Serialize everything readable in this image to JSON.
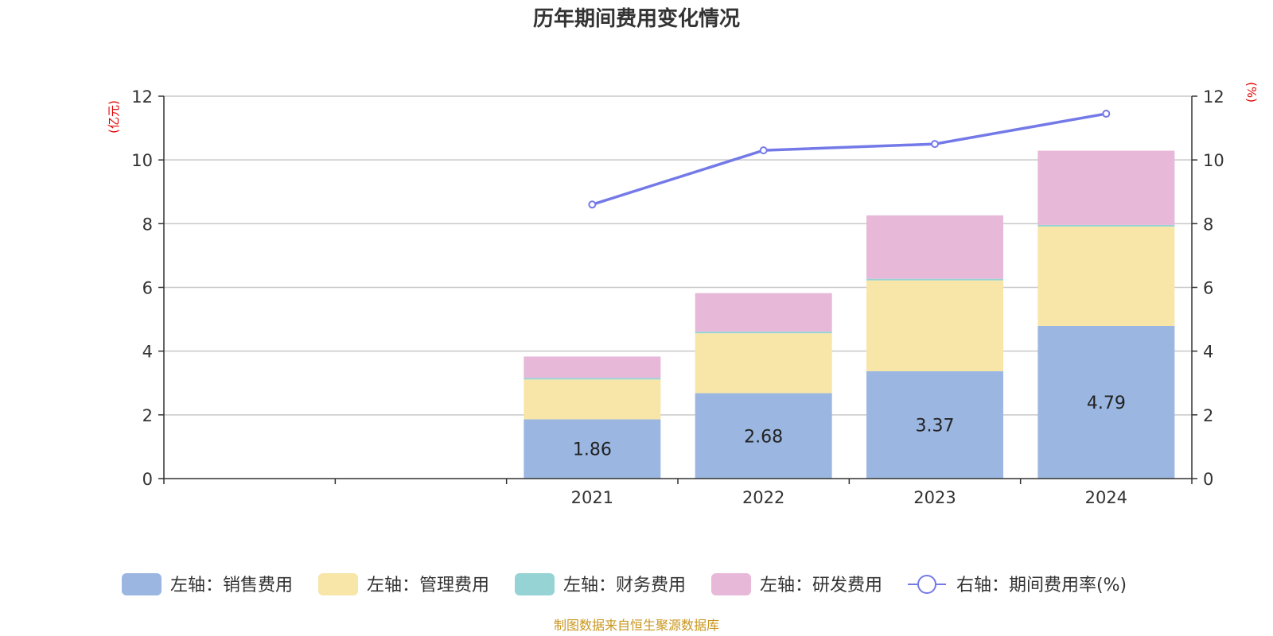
{
  "chart_data": {
    "type": "bar",
    "title": "历年期间费用变化情况",
    "categories": [
      "",
      "",
      "2021",
      "2022",
      "2023",
      "2024"
    ],
    "left_axis": {
      "unit": "(亿元)",
      "min": 0,
      "max": 12,
      "ticks": [
        "0",
        "2",
        "4",
        "6",
        "8",
        "10",
        "12"
      ]
    },
    "right_axis": {
      "unit": "(%)",
      "min": 0,
      "max": 12,
      "ticks": [
        "0",
        "2",
        "4",
        "6",
        "8",
        "10",
        "12"
      ]
    },
    "stacked": true,
    "series": [
      {
        "name": "左轴：销售费用",
        "axis": "left",
        "color": "#9bb7e1",
        "values": [
          null,
          null,
          1.86,
          2.68,
          3.37,
          4.79
        ],
        "labels": [
          "",
          "",
          "1.86",
          "2.68",
          "3.37",
          "4.79"
        ]
      },
      {
        "name": "左轴：管理费用",
        "axis": "left",
        "color": "#f7e6a8",
        "values": [
          null,
          null,
          1.25,
          1.88,
          2.85,
          3.12
        ]
      },
      {
        "name": "左轴：财务费用",
        "axis": "left",
        "color": "#96d3d4",
        "values": [
          null,
          null,
          0.05,
          0.05,
          0.05,
          0.05
        ]
      },
      {
        "name": "左轴：研发费用",
        "axis": "left",
        "color": "#e7b8d8",
        "values": [
          null,
          null,
          0.67,
          1.21,
          1.99,
          2.33
        ]
      },
      {
        "name": "右轴：期间费用率(%)",
        "axis": "right",
        "type": "line",
        "color": "#7479e8",
        "values": [
          null,
          null,
          8.6,
          10.3,
          10.5,
          11.45
        ]
      }
    ],
    "grid": true,
    "legend_position": "bottom",
    "source": "制图数据来自恒生聚源数据库"
  }
}
